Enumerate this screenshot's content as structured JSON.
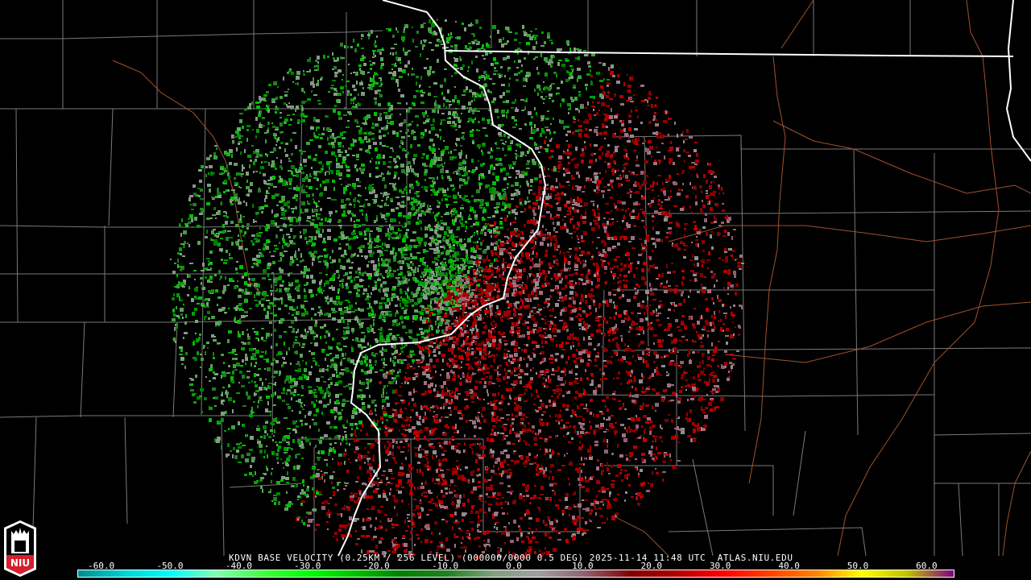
{
  "title": "KDVN BASE VELOCITY (0.25KM / 256 LEVEL) (000000/0000 0.5 DEG) 2025-11-14 11:48 UTC  ATLAS.NIU.EDU",
  "logo": {
    "text": "NIU",
    "color": "#d31f2e"
  },
  "colorbar": {
    "ticks": [
      "-60.0",
      "-50.0",
      "-40.0",
      "-30.0",
      "-20.0",
      "-10.0",
      "0.0",
      "10.0",
      "20.0",
      "30.0",
      "40.0",
      "50.0",
      "60.0"
    ],
    "range": [
      -64,
      64
    ],
    "stops": [
      "#008c8c",
      "#00d0d0",
      "#00ffff",
      "#80ffb0",
      "#40ff40",
      "#00ff00",
      "#00c000",
      "#008000",
      "#208020",
      "#80a080",
      "#a0a0a0",
      "#906070",
      "#800000",
      "#b00000",
      "#ff0000",
      "#ff4000",
      "#ff8000",
      "#ffff00",
      "#c0c000",
      "#800080"
    ]
  },
  "colors": {
    "inbound": "#00a000",
    "outbound": "#a00000",
    "state_border": "#ffffff",
    "county_border": "#808080",
    "river": "#a0522d"
  }
}
